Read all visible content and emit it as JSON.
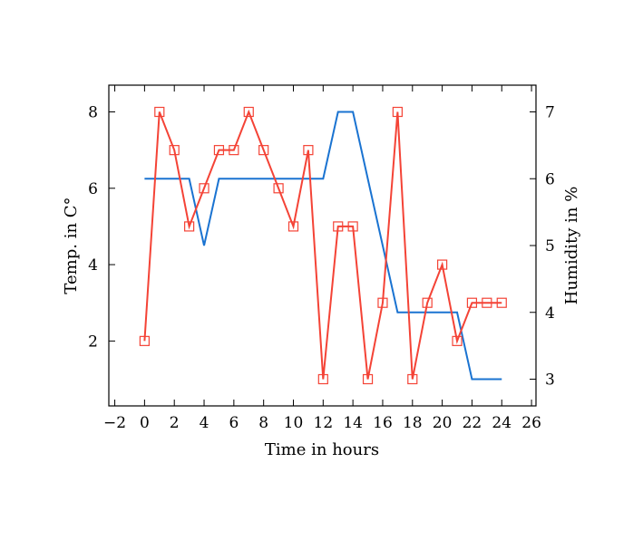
{
  "chart_data": {
    "type": "line",
    "title": "",
    "xlabel": "Time in hours",
    "ylabel_left": "Temp. in C°",
    "ylabel_right": "Humidity in %",
    "xlim": [
      -2.4,
      26.3
    ],
    "ylim_left": [
      0.3,
      8.7
    ],
    "ylim_right": [
      2.6,
      7.4
    ],
    "x_ticks": [
      -2,
      0,
      2,
      4,
      6,
      8,
      10,
      12,
      14,
      16,
      18,
      20,
      22,
      24,
      26
    ],
    "x_tick_labels": [
      "−2",
      "0",
      "2",
      "4",
      "6",
      "8",
      "10",
      "12",
      "14",
      "16",
      "18",
      "20",
      "22",
      "24",
      "26"
    ],
    "y_left_ticks": [
      2,
      4,
      6,
      8
    ],
    "y_left_tick_labels": [
      "2",
      "4",
      "6",
      "8"
    ],
    "y_right_ticks": [
      3,
      4,
      5,
      6,
      7
    ],
    "y_right_tick_labels": [
      "3",
      "4",
      "5",
      "6",
      "7"
    ],
    "grid": false,
    "legend": "none",
    "series": [
      {
        "axis": "left",
        "color": "#f44336",
        "marker": "square-open",
        "x": [
          0,
          1,
          2,
          3,
          4,
          5,
          6,
          7,
          8,
          9,
          10,
          11,
          12,
          13,
          14,
          15,
          16,
          17,
          18,
          19,
          20,
          21,
          22,
          23,
          24
        ],
        "y": [
          2,
          8,
          7,
          5,
          6,
          7,
          7,
          8,
          7,
          6,
          5,
          7,
          1,
          5,
          5,
          1,
          3,
          8,
          1,
          3,
          4,
          2,
          3,
          3,
          3
        ]
      },
      {
        "axis": "right",
        "color": "#1a73d1",
        "marker": "none",
        "x": [
          0,
          1,
          2,
          3,
          4,
          5,
          6,
          7,
          8,
          9,
          10,
          11,
          12,
          13,
          14,
          15,
          16,
          17,
          18,
          19,
          20,
          21,
          22,
          23,
          24
        ],
        "y": [
          6,
          6,
          6,
          6,
          5,
          6,
          6,
          6,
          6,
          6,
          6,
          6,
          6,
          7,
          7,
          6,
          5,
          4,
          4,
          4,
          4,
          4,
          3,
          3,
          3
        ]
      }
    ]
  }
}
